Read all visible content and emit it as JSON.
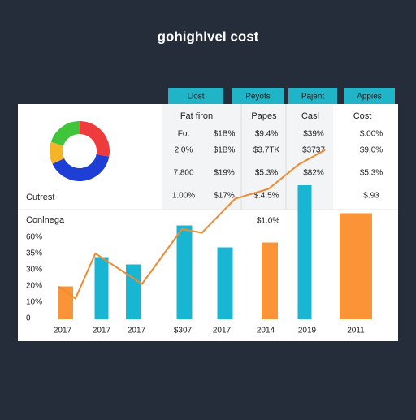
{
  "title": "gohighlvel cost",
  "tabs": [
    "Llost",
    "Peyots",
    "Pajent",
    "Appies"
  ],
  "table": {
    "header": [
      "Fat firon",
      "Papes",
      "Casl",
      "Cost"
    ],
    "rows": [
      [
        "Fot",
        "$1B%",
        "$9.4%",
        "$39%",
        "$.00%"
      ],
      [
        "2.0%",
        "$1B%",
        "$3.7TK",
        "$3737",
        "$9.0%"
      ],
      [
        "7.800",
        "$19%",
        "$5.3%",
        "$82%",
        "$5.3%"
      ],
      [
        "1.00%",
        "$17%",
        "$.4.5%",
        null,
        "$.93"
      ]
    ]
  },
  "donut_label": "Cutrest",
  "chart_label": "Conlnega",
  "annotation": "$1.0%",
  "chart_data": [
    {
      "type": "pie",
      "values": [
        28,
        40,
        12,
        20
      ],
      "colors": [
        "#ee3b3b",
        "#1e3fd6",
        "#f5b428",
        "#3fc43a"
      ]
    },
    {
      "type": "bar",
      "categories": [
        "2017",
        "2017",
        "2017",
        "$307",
        "2017",
        "2014",
        "2019",
        "2011"
      ],
      "values": [
        27,
        51,
        45,
        77,
        59,
        63,
        110,
        87
      ],
      "colors": [
        "#fb9436",
        "#18b6d2",
        "#18b6d2",
        "#18b6d2",
        "#18b6d2",
        "#fb9436",
        "#18b6d2",
        "#fb9436"
      ],
      "y_axis_labels": [
        "60%",
        "35%",
        "30%",
        "20%",
        "10%",
        "0"
      ],
      "ylim": [
        0,
        140
      ],
      "xlim": [
        0,
        100
      ],
      "line": {
        "color": "#f08a32",
        "x": [
          3,
          8,
          14,
          28,
          40,
          46,
          56,
          66,
          75,
          83
        ],
        "values": [
          27,
          17,
          54,
          29,
          74,
          71,
          99,
          107,
          127,
          139
        ]
      }
    }
  ]
}
